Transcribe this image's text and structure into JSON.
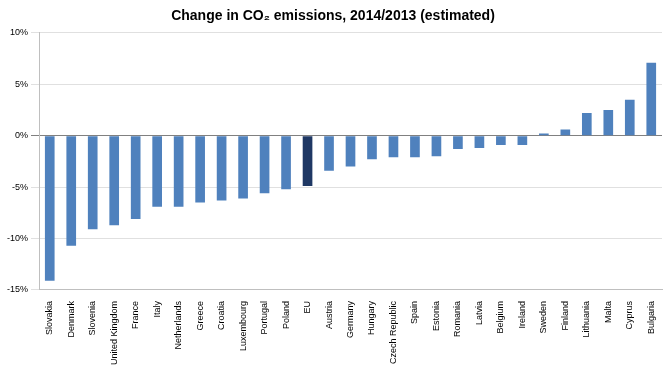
{
  "chart_data": {
    "type": "bar",
    "title": "Change in CO₂ emissions, 2014/2013 (estimated)",
    "categories": [
      "Slovakia",
      "Denmark",
      "Slovenia",
      "United Kingdom",
      "France",
      "Italy",
      "Netherlands",
      "Greece",
      "Croatia",
      "Luxembourg",
      "Portugal",
      "Poland",
      "EU",
      "Austria",
      "Germany",
      "Hungary",
      "Czech Republic",
      "Spain",
      "Estonia",
      "Romania",
      "Latvia",
      "Belgium",
      "Ireland",
      "Sweden",
      "Finland",
      "Lithuania",
      "Malta",
      "Cyprus",
      "Bulgaria"
    ],
    "values": [
      -14.1,
      -10.7,
      -9.1,
      -8.7,
      -8.1,
      -6.9,
      -6.9,
      -6.5,
      -6.3,
      -6.1,
      -5.6,
      -5.2,
      -4.9,
      -3.4,
      -3.0,
      -2.3,
      -2.1,
      -2.1,
      -2.0,
      -1.3,
      -1.2,
      -0.9,
      -0.9,
      0.2,
      0.6,
      2.2,
      2.5,
      3.5,
      7.1
    ],
    "colors": [
      "#4f81bd",
      "#4f81bd",
      "#4f81bd",
      "#4f81bd",
      "#4f81bd",
      "#4f81bd",
      "#4f81bd",
      "#4f81bd",
      "#4f81bd",
      "#4f81bd",
      "#4f81bd",
      "#4f81bd",
      "#1f3864",
      "#4f81bd",
      "#4f81bd",
      "#4f81bd",
      "#4f81bd",
      "#4f81bd",
      "#4f81bd",
      "#4f81bd",
      "#4f81bd",
      "#4f81bd",
      "#4f81bd",
      "#4f81bd",
      "#4f81bd",
      "#4f81bd",
      "#4f81bd",
      "#4f81bd",
      "#4f81bd"
    ],
    "ylim": [
      -15,
      10
    ],
    "yticks": [
      {
        "value": -15,
        "label": "-15%"
      },
      {
        "value": -10,
        "label": "-10%"
      },
      {
        "value": -5,
        "label": "-5%"
      },
      {
        "value": 0,
        "label": "0%"
      },
      {
        "value": 5,
        "label": "5%"
      },
      {
        "value": 10,
        "label": "10%"
      }
    ],
    "grid": true
  }
}
